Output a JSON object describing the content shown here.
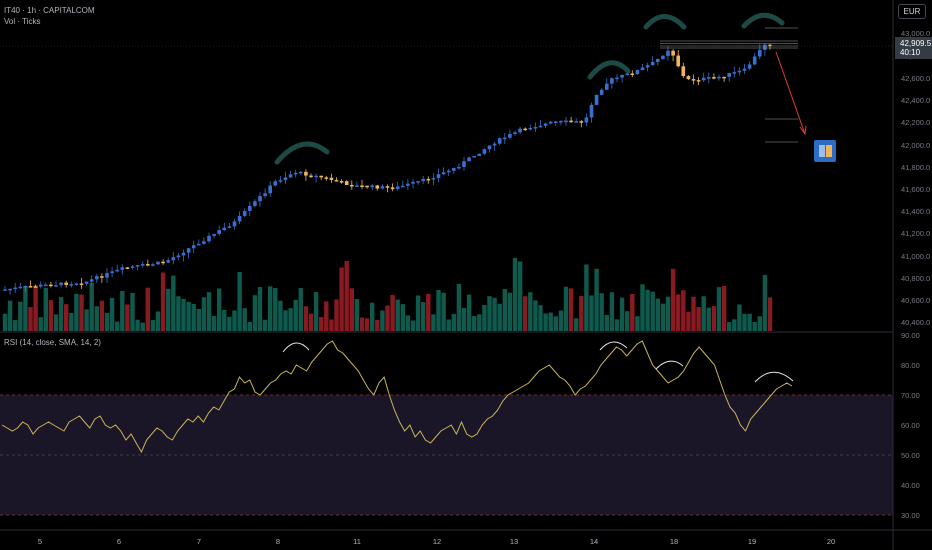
{
  "header": {
    "symbol_line": "IT40 · 1h · CAPITALCOM",
    "volume_line": "Vol · Ticks",
    "rsi_line": "RSI (14, close, SMA, 14, 2)",
    "currency": "EUR",
    "last_price": "42,909.5",
    "countdown": "40:10"
  },
  "colors": {
    "up": "#3a6fd0",
    "down": "#f0b75a",
    "vol_up": "#0f5a4c",
    "vol_down": "#8a1a22",
    "rsi_line": "#c9b458",
    "rsi_band": "#1a1627",
    "annotation": "#1d4a44",
    "arrow": "#e03a3a"
  },
  "chart_data": {
    "type": "candlestick",
    "price_axis": {
      "ticks": [
        "43,000.0",
        "42,800.0",
        "42,600.0",
        "42,400.0",
        "42,200.0",
        "42,000.0",
        "41,800.0",
        "41,600.0",
        "41,400.0",
        "41,200.0",
        "41,000.0",
        "40,800.0",
        "40,600.0",
        "40,400.0"
      ],
      "range": [
        40300,
        43050
      ]
    },
    "time_axis": {
      "ticks": [
        "5",
        "6",
        "7",
        "8",
        "11",
        "12",
        "13",
        "14",
        "18",
        "19",
        "20"
      ]
    },
    "rsi": {
      "ticks": [
        "90.00",
        "80.00",
        "70.00",
        "60.00",
        "50.00",
        "40.00",
        "30.00"
      ],
      "range": [
        28,
        92
      ],
      "upper": 70,
      "middle": 50,
      "lower": 30,
      "values": [
        60,
        59,
        58,
        59,
        61,
        60,
        57,
        59,
        60,
        61,
        60,
        59,
        58,
        61,
        62,
        63,
        61,
        59,
        62,
        63,
        60,
        59,
        60,
        58,
        55,
        57,
        54,
        51,
        55,
        57,
        59,
        58,
        56,
        55,
        58,
        60,
        62,
        61,
        63,
        61,
        64,
        66,
        65,
        68,
        71,
        72,
        76,
        74,
        75,
        71,
        70,
        72,
        74,
        75,
        77,
        78,
        77,
        80,
        79,
        78,
        81,
        83,
        85,
        87,
        88,
        85,
        84,
        82,
        80,
        78,
        75,
        72,
        70,
        74,
        76,
        70,
        65,
        61,
        58,
        60,
        56,
        58,
        55,
        54,
        56,
        58,
        59,
        60,
        57,
        61,
        57,
        56,
        57,
        60,
        62,
        63,
        65,
        68,
        70,
        71,
        72,
        73,
        74,
        76,
        78,
        79,
        80,
        78,
        76,
        75,
        73,
        70,
        72,
        73,
        75,
        77,
        80,
        82,
        84,
        86,
        85,
        83,
        85,
        87,
        88,
        84,
        80,
        78,
        76,
        74,
        75,
        76,
        78,
        81,
        84,
        86,
        84,
        82,
        80,
        75,
        70,
        66,
        64,
        60,
        58,
        62,
        64,
        66,
        68,
        70,
        72,
        73,
        74,
        73
      ]
    }
  }
}
